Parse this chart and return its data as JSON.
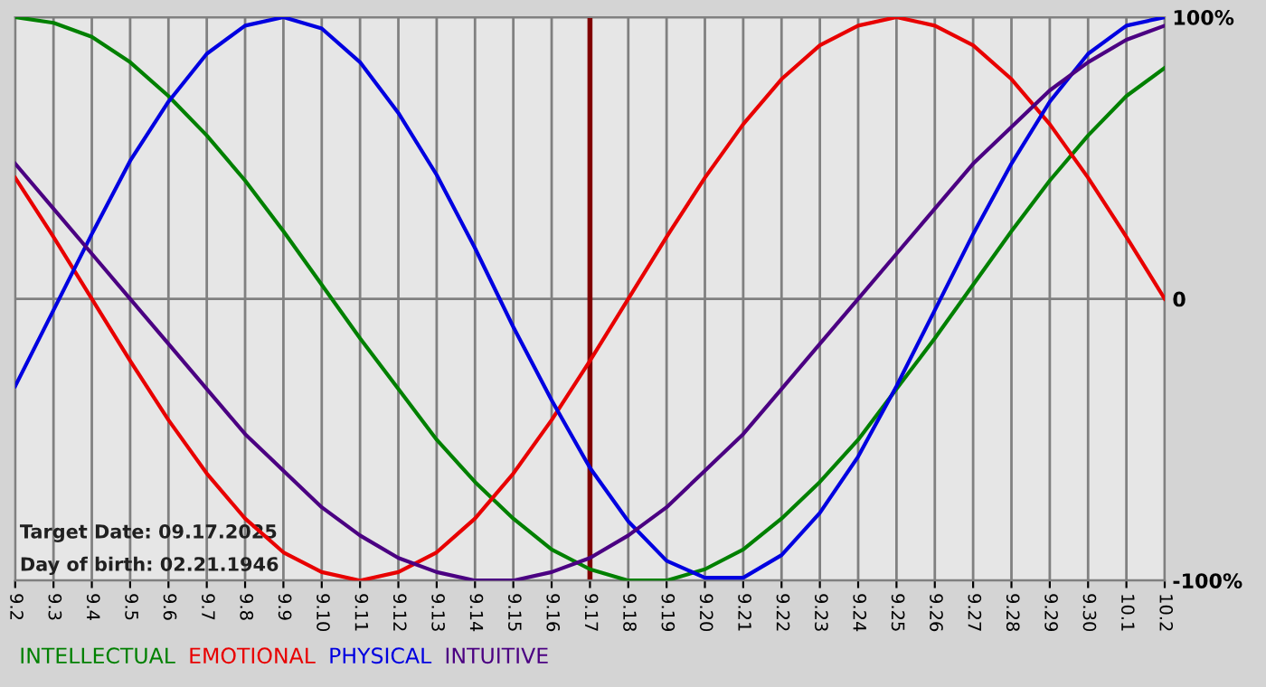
{
  "chart_data": {
    "type": "line",
    "categories": [
      "9.2",
      "9.3",
      "9.4",
      "9.5",
      "9.6",
      "9.7",
      "9.8",
      "9.9",
      "9.10",
      "9.11",
      "9.12",
      "9.13",
      "9.14",
      "9.15",
      "9.16",
      "9.17",
      "9.18",
      "9.19",
      "9.20",
      "9.21",
      "9.22",
      "9.23",
      "9.24",
      "9.25",
      "9.26",
      "9.27",
      "9.28",
      "9.29",
      "9.30",
      "10.1",
      "10.2"
    ],
    "series": [
      {
        "name": "INTELLECTUAL",
        "color": "#008000",
        "values": [
          100,
          98,
          93,
          84,
          72,
          58,
          42,
          24,
          5,
          -14,
          -32,
          -50,
          -65,
          -78,
          -89,
          -96,
          -100,
          -100,
          -96,
          -89,
          -78,
          -65,
          -50,
          -32,
          -14,
          5,
          24,
          42,
          58,
          72,
          82
        ]
      },
      {
        "name": "EMOTIONAL",
        "color": "#e80000",
        "values": [
          43,
          22,
          0,
          -22,
          -43,
          -62,
          -78,
          -90,
          -97,
          -100,
          -97,
          -90,
          -78,
          -62,
          -43,
          -22,
          0,
          22,
          43,
          62,
          78,
          90,
          97,
          100,
          97,
          90,
          78,
          62,
          43,
          22,
          0
        ]
      },
      {
        "name": "PHYSICAL",
        "color": "#0000e0",
        "values": [
          -31,
          -4,
          23,
          49,
          70,
          87,
          97,
          100,
          96,
          84,
          66,
          44,
          18,
          -10,
          -36,
          -60,
          -79,
          -93,
          -99,
          -99,
          -91,
          -76,
          -56,
          -31,
          -4,
          23,
          48,
          70,
          87,
          97,
          100
        ]
      },
      {
        "name": "INTUITIVE",
        "color": "#4b0082",
        "values": [
          48,
          32,
          16,
          0,
          -16,
          -32,
          -48,
          -61,
          -74,
          -84,
          -92,
          -97,
          -100,
          -100,
          -97,
          -92,
          -84,
          -74,
          -61,
          -48,
          -32,
          -16,
          0,
          16,
          32,
          48,
          61,
          74,
          84,
          92,
          97
        ]
      }
    ],
    "ylim": [
      -100,
      100
    ],
    "yticks": [
      {
        "value": 100,
        "label": "100%"
      },
      0,
      {
        "value": -100,
        "label": "-100%"
      }
    ],
    "ref_lines": [
      {
        "axis": "x",
        "value": "9.17",
        "color": "#800000"
      }
    ],
    "annotations": [
      "Target Date: 09.17.2025",
      "Day of birth: 02.21.1946"
    ],
    "grid": true,
    "legend": "bottom left",
    "marker": "none",
    "line_style": "solid"
  }
}
